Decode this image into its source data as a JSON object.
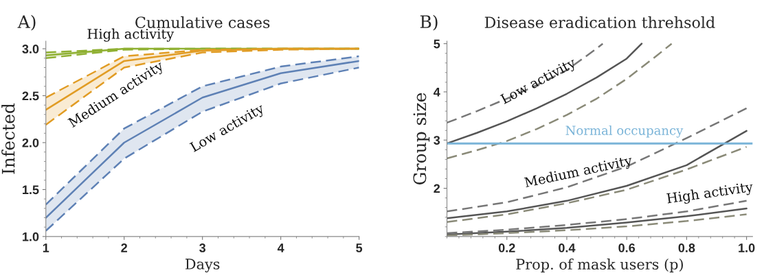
{
  "chart_data": [
    {
      "type": "line",
      "title": "Cumulative cases",
      "xlabel": "Days",
      "ylabel": "Infected",
      "annotations": [
        "A)"
      ],
      "x": [
        1,
        2,
        3,
        4,
        5
      ],
      "xlim": [
        1,
        5
      ],
      "ylim": [
        1.0,
        3.08
      ],
      "xticks": [
        1,
        2,
        3,
        4,
        5
      ],
      "yticks": [
        {
          "value": 1.0,
          "label": "1.0"
        },
        {
          "value": 1.5,
          "label": "1.5"
        },
        {
          "value": 2.0,
          "label": "2.0"
        },
        {
          "value": 2.5,
          "label": "2.5"
        },
        {
          "value": 3.0,
          "label": "3.0"
        }
      ],
      "series": [
        {
          "name": "High activity",
          "color": "#8fb032",
          "line_style": "solid",
          "values": [
            2.93,
            3.0,
            3.0,
            3.0,
            3.0
          ],
          "lower": [
            2.9,
            2.99,
            3.0,
            3.0,
            3.0
          ],
          "upper": [
            2.96,
            3.0,
            3.0,
            3.0,
            3.0
          ]
        },
        {
          "color": "#8fb032",
          "line_style": "dashed",
          "values": [
            2.9,
            2.99,
            3.0,
            3.0,
            3.0
          ]
        },
        {
          "color": "#8fb032",
          "line_style": "dashed",
          "values": [
            2.96,
            3.0,
            3.0,
            3.0,
            3.0
          ]
        },
        {
          "name": "Medium activity",
          "color": "#e19c24",
          "line_style": "solid",
          "values": [
            2.35,
            2.87,
            2.98,
            3.0,
            3.0
          ],
          "lower": [
            2.19,
            2.8,
            2.96,
            2.99,
            3.0
          ],
          "upper": [
            2.48,
            2.92,
            2.99,
            3.0,
            3.0
          ]
        },
        {
          "color": "#e19c24",
          "line_style": "dashed",
          "values": [
            2.19,
            2.8,
            2.96,
            2.99,
            3.0
          ]
        },
        {
          "color": "#e19c24",
          "line_style": "dashed",
          "values": [
            2.48,
            2.92,
            2.99,
            3.0,
            3.0
          ]
        },
        {
          "name": "Low activity",
          "color": "#5e81b5",
          "line_style": "solid",
          "values": [
            1.2,
            2.0,
            2.48,
            2.74,
            2.87
          ],
          "lower": [
            1.06,
            1.83,
            2.33,
            2.63,
            2.8
          ],
          "upper": [
            1.34,
            2.15,
            2.6,
            2.81,
            2.92
          ]
        },
        {
          "color": "#5e81b5",
          "line_style": "dashed",
          "values": [
            1.06,
            1.83,
            2.33,
            2.63,
            2.8
          ]
        },
        {
          "color": "#5e81b5",
          "line_style": "dashed",
          "values": [
            1.34,
            2.15,
            2.6,
            2.81,
            2.92
          ]
        }
      ],
      "grid": false,
      "legend": false
    },
    {
      "type": "line",
      "title": "Disease eradication threhsold",
      "xlabel": "Prop. of mask users (p)",
      "ylabel": "Group size",
      "annotations": [
        "B)"
      ],
      "xlim": [
        0,
        1.02
      ],
      "ylim": [
        1.0,
        5.05
      ],
      "xticks": [
        {
          "value": 0.2,
          "label": "0.2"
        },
        {
          "value": 0.4,
          "label": "0.4"
        },
        {
          "value": 0.6,
          "label": "0.6"
        },
        {
          "value": 0.8,
          "label": "0.8"
        },
        {
          "value": 1.0,
          "label": "1.0"
        }
      ],
      "yticks": [
        2,
        3,
        4,
        5
      ],
      "series": [
        {
          "name": "Low activity",
          "color": "#555555",
          "line_style": "solid",
          "x": [
            0,
            0.1,
            0.2,
            0.3,
            0.4,
            0.5,
            0.6,
            0.65
          ],
          "values": [
            2.93,
            3.15,
            3.39,
            3.66,
            3.96,
            4.3,
            4.69,
            5.0
          ]
        },
        {
          "color": "#777777",
          "line_style": "dashed",
          "x": [
            0,
            0.1,
            0.2,
            0.3,
            0.4,
            0.5,
            0.52
          ],
          "values": [
            3.36,
            3.6,
            3.86,
            4.14,
            4.45,
            4.9,
            5.0
          ]
        },
        {
          "color": "#8a8a78",
          "line_style": "dashed",
          "x": [
            0,
            0.1,
            0.2,
            0.3,
            0.4,
            0.5,
            0.6,
            0.7,
            0.75
          ],
          "values": [
            2.62,
            2.79,
            2.98,
            3.23,
            3.52,
            3.86,
            4.27,
            4.75,
            5.0
          ]
        },
        {
          "name": "Medium activity",
          "color": "#555555",
          "line_style": "solid",
          "x": [
            0,
            0.2,
            0.4,
            0.6,
            0.8,
            1.0
          ],
          "values": [
            1.38,
            1.52,
            1.74,
            2.05,
            2.48,
            3.19
          ]
        },
        {
          "color": "#777777",
          "line_style": "dashed",
          "x": [
            0,
            0.2,
            0.4,
            0.6,
            0.8,
            1.0
          ],
          "values": [
            1.52,
            1.71,
            2.02,
            2.45,
            3.04,
            3.66
          ]
        },
        {
          "color": "#8a8a78",
          "line_style": "dashed",
          "x": [
            0,
            0.2,
            0.4,
            0.6,
            0.8,
            1.0
          ],
          "values": [
            1.3,
            1.46,
            1.69,
            1.97,
            2.39,
            2.86
          ]
        },
        {
          "name": "High activity",
          "color": "#555555",
          "line_style": "solid",
          "x": [
            0,
            0.2,
            0.4,
            0.6,
            0.8,
            1.0
          ],
          "values": [
            1.04,
            1.1,
            1.18,
            1.29,
            1.42,
            1.58
          ]
        },
        {
          "color": "#777777",
          "line_style": "dashed",
          "x": [
            0,
            0.2,
            0.4,
            0.6,
            0.8,
            1.0
          ],
          "values": [
            1.07,
            1.14,
            1.24,
            1.36,
            1.52,
            1.74
          ]
        },
        {
          "color": "#8a8a78",
          "line_style": "dashed",
          "x": [
            0,
            0.2,
            0.4,
            0.6,
            0.8,
            1.0
          ],
          "values": [
            1.02,
            1.07,
            1.13,
            1.21,
            1.32,
            1.46
          ]
        }
      ],
      "ref_lines": [
        {
          "axis": "y",
          "value": 2.93,
          "label": "Normal occupancy",
          "color": "#7ab4d8"
        }
      ],
      "grid": false,
      "legend": false
    }
  ]
}
